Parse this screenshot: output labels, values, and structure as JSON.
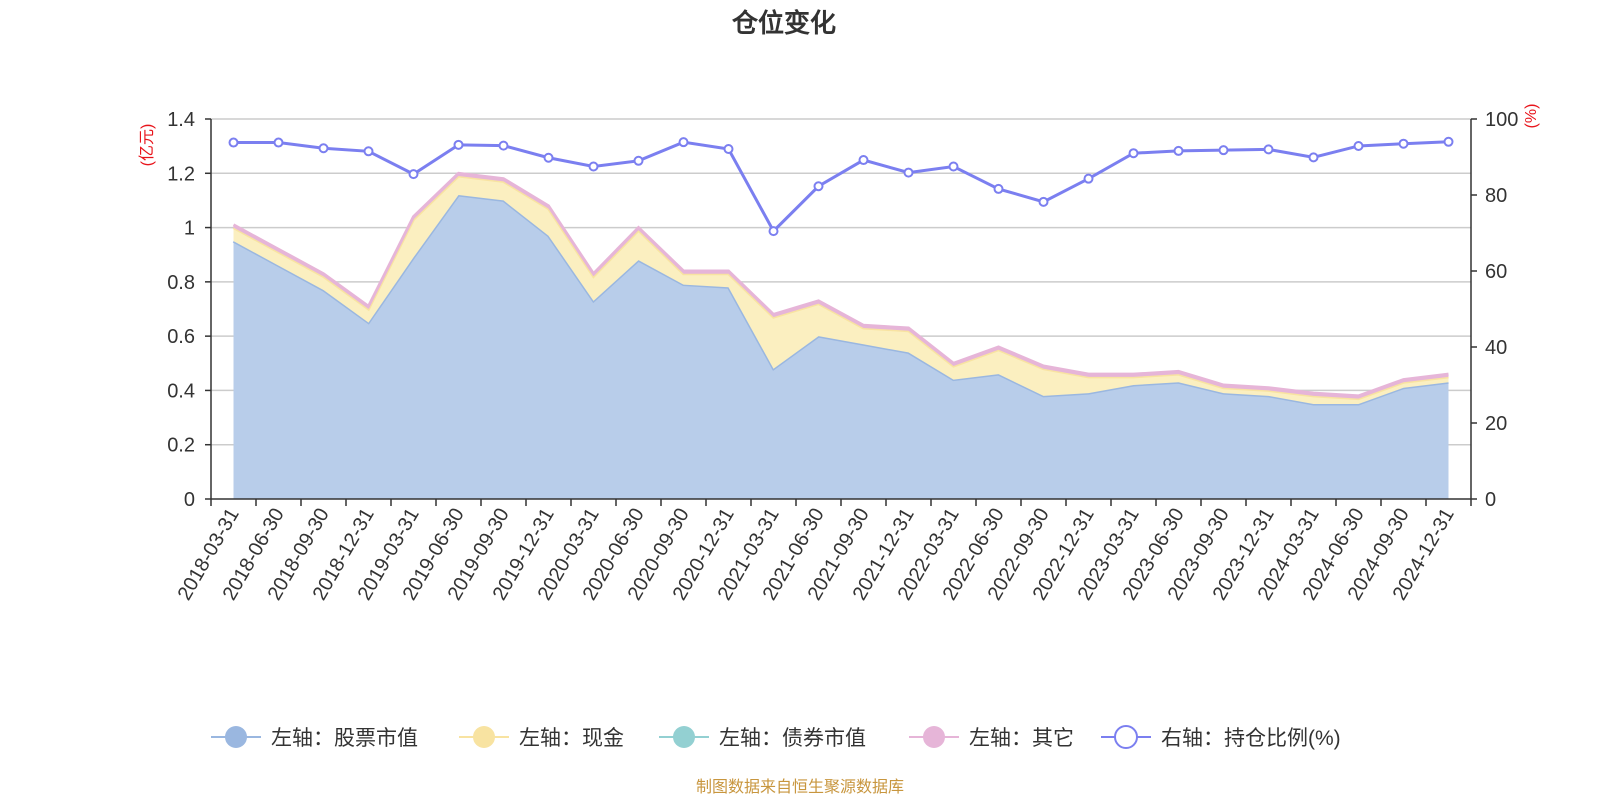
{
  "chart_data": {
    "type": "area",
    "title": "仓位变化",
    "left_axis_unit": "(亿元)",
    "right_axis_unit": "(%)",
    "left_ylim": [
      0,
      1.4
    ],
    "left_ticks": [
      "0",
      "0.2",
      "0.4",
      "0.6",
      "0.8",
      "1",
      "1.2",
      "1.4"
    ],
    "right_ylim": [
      0,
      100
    ],
    "right_ticks": [
      "0",
      "20",
      "40",
      "60",
      "80",
      "100"
    ],
    "categories": [
      "2018-03-31",
      "2018-06-30",
      "2018-09-30",
      "2018-12-31",
      "2019-03-31",
      "2019-06-30",
      "2019-09-30",
      "2019-12-31",
      "2020-03-31",
      "2020-06-30",
      "2020-09-30",
      "2020-12-31",
      "2021-03-31",
      "2021-06-30",
      "2021-09-30",
      "2021-12-31",
      "2022-03-31",
      "2022-06-30",
      "2022-09-30",
      "2022-12-31",
      "2023-03-31",
      "2023-06-30",
      "2023-09-30",
      "2023-12-31",
      "2024-03-31",
      "2024-06-30",
      "2024-09-30",
      "2024-12-31"
    ],
    "series": [
      {
        "name": "左轴：股票市值",
        "axis": "left",
        "stack": true,
        "color": "#9ab7e0",
        "fill": "#b8cdea",
        "values": [
          0.95,
          0.86,
          0.77,
          0.65,
          0.89,
          1.12,
          1.1,
          0.97,
          0.73,
          0.88,
          0.79,
          0.78,
          0.48,
          0.6,
          0.57,
          0.54,
          0.44,
          0.46,
          0.38,
          0.39,
          0.42,
          0.43,
          0.39,
          0.38,
          0.35,
          0.35,
          0.41,
          0.43
        ]
      },
      {
        "name": "左轴：现金",
        "axis": "left",
        "stack": true,
        "color": "#f8e3a1",
        "fill": "#fbefc0",
        "values": [
          0.05,
          0.05,
          0.05,
          0.05,
          0.14,
          0.07,
          0.07,
          0.1,
          0.09,
          0.11,
          0.04,
          0.05,
          0.19,
          0.12,
          0.06,
          0.08,
          0.05,
          0.09,
          0.1,
          0.06,
          0.03,
          0.03,
          0.02,
          0.02,
          0.03,
          0.02,
          0.02,
          0.02
        ]
      },
      {
        "name": "左轴：债券市值",
        "axis": "left",
        "stack": true,
        "color": "#93d0d2",
        "fill": "#93d0d2",
        "values": [
          0,
          0,
          0,
          0,
          0,
          0,
          0,
          0,
          0,
          0,
          0,
          0,
          0,
          0,
          0,
          0,
          0,
          0,
          0,
          0,
          0,
          0,
          0,
          0,
          0,
          0,
          0,
          0
        ]
      },
      {
        "name": "左轴：其它",
        "axis": "left",
        "stack": true,
        "color": "#e6b5d8",
        "fill": "#e6b5d8",
        "values": [
          0.01,
          0.01,
          0.01,
          0.01,
          0.01,
          0.01,
          0.01,
          0.01,
          0.01,
          0.01,
          0.01,
          0.01,
          0.01,
          0.01,
          0.01,
          0.01,
          0.01,
          0.01,
          0.01,
          0.01,
          0.01,
          0.01,
          0.01,
          0.01,
          0.01,
          0.01,
          0.01,
          0.01
        ]
      },
      {
        "name": "右轴：持仓比例(%)",
        "axis": "right",
        "stack": false,
        "color": "#7b7ff0",
        "values": [
          93.8,
          93.8,
          92.3,
          91.5,
          85.5,
          93.2,
          93.0,
          89.8,
          87.5,
          89.0,
          93.9,
          92.1,
          70.5,
          82.3,
          89.2,
          85.9,
          87.5,
          81.6,
          78.2,
          84.3,
          91.0,
          91.6,
          91.8,
          92.0,
          89.9,
          92.9,
          93.5,
          94.0
        ]
      }
    ],
    "source_note": "制图数据来自恒生聚源数据库"
  }
}
